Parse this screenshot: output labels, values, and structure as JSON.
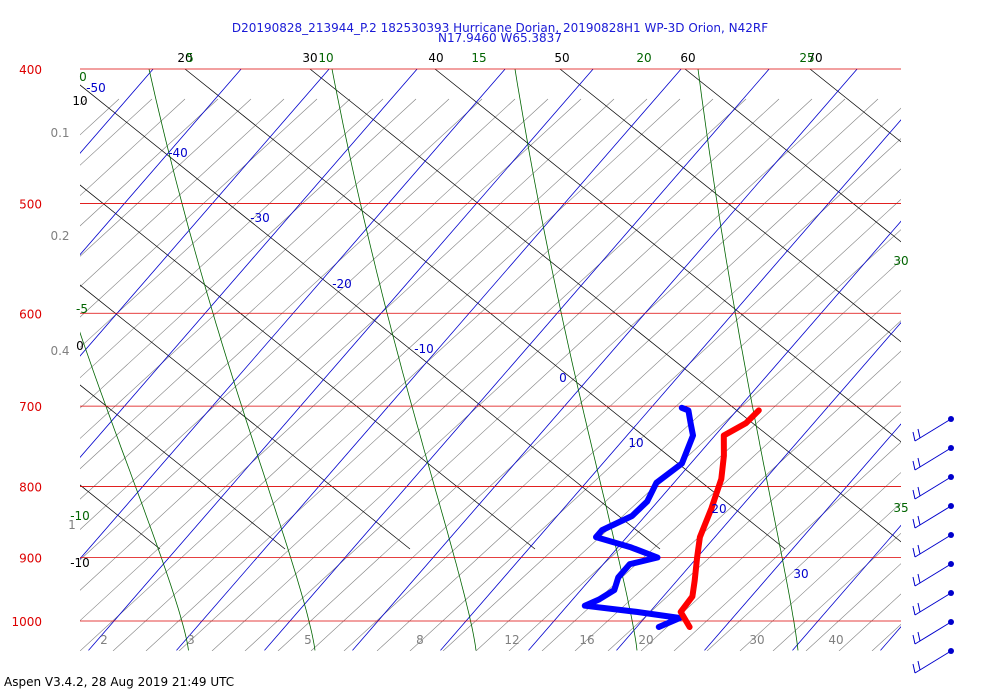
{
  "title_line1": "D20190828_213944_P.2 182530393 Hurricane Dorian, 20190828H1 WP-3D Orion, N42RF",
  "title_line2": "N17.9460 W65.3837",
  "footer": "Aspen V3.4.2, 28 Aug 2019  21:49 UTC",
  "colors": {
    "isobar": "#dd0000",
    "isotherm": "#0000cc",
    "dry_adiabat": "#000000",
    "moist_adiabat": "#006400",
    "mixing_ratio": "#808080",
    "temperature": "#ff0000",
    "dewpoint": "#0000ff",
    "wind": "#0000cc"
  },
  "chart_data": {
    "type": "skew-t log-p sounding",
    "pressure_axis_hPa": [
      400,
      500,
      600,
      700,
      800,
      900,
      1000
    ],
    "pressure_range_hPa": [
      1050,
      400
    ],
    "isotherms_C": [
      -50,
      -40,
      -30,
      -20,
      -10,
      0,
      10,
      20,
      30
    ],
    "dry_adiabats_C": [
      -10,
      0,
      10
    ],
    "dry_adiabat_top_labels": [
      "20",
      "30",
      "40",
      "50",
      "60",
      "70"
    ],
    "moist_adiabats_C": [
      -10,
      -5,
      0,
      5,
      10,
      15,
      20,
      25,
      30,
      35
    ],
    "mixing_ratio_labels_g_per_kg": [
      "0.1",
      "0.2",
      "0.4",
      "1",
      "2",
      "3",
      "5",
      "8",
      "12",
      "16",
      "20",
      "30",
      "40"
    ],
    "temperature_profile": [
      {
        "p": 705,
        "t": 12.5
      },
      {
        "p": 720,
        "t": 12.3
      },
      {
        "p": 735,
        "t": 11.0
      },
      {
        "p": 760,
        "t": 13.0
      },
      {
        "p": 790,
        "t": 15.0
      },
      {
        "p": 830,
        "t": 16.8
      },
      {
        "p": 870,
        "t": 18.3
      },
      {
        "p": 900,
        "t": 20.0
      },
      {
        "p": 935,
        "t": 22.0
      },
      {
        "p": 960,
        "t": 23.3
      },
      {
        "p": 985,
        "t": 23.5
      },
      {
        "p": 1010,
        "t": 26.0
      }
    ],
    "dewpoint_profile": [
      {
        "p": 702,
        "t": 3.5
      },
      {
        "p": 705,
        "t": 4.5
      },
      {
        "p": 720,
        "t": 6.0
      },
      {
        "p": 735,
        "t": 7.5
      },
      {
        "p": 770,
        "t": 9.0
      },
      {
        "p": 795,
        "t": 8.0
      },
      {
        "p": 820,
        "t": 8.8
      },
      {
        "p": 840,
        "t": 8.5
      },
      {
        "p": 860,
        "t": 6.5
      },
      {
        "p": 870,
        "t": 6.5
      },
      {
        "p": 885,
        "t": 11.5
      },
      {
        "p": 900,
        "t": 15.5
      },
      {
        "p": 910,
        "t": 13.0
      },
      {
        "p": 930,
        "t": 13.0
      },
      {
        "p": 950,
        "t": 13.8
      },
      {
        "p": 965,
        "t": 13.0
      },
      {
        "p": 975,
        "t": 12.0
      },
      {
        "p": 985,
        "t": 18.5
      },
      {
        "p": 995,
        "t": 24.0
      },
      {
        "p": 1010,
        "t": 22.5
      }
    ],
    "wind_barb_count": 9
  }
}
